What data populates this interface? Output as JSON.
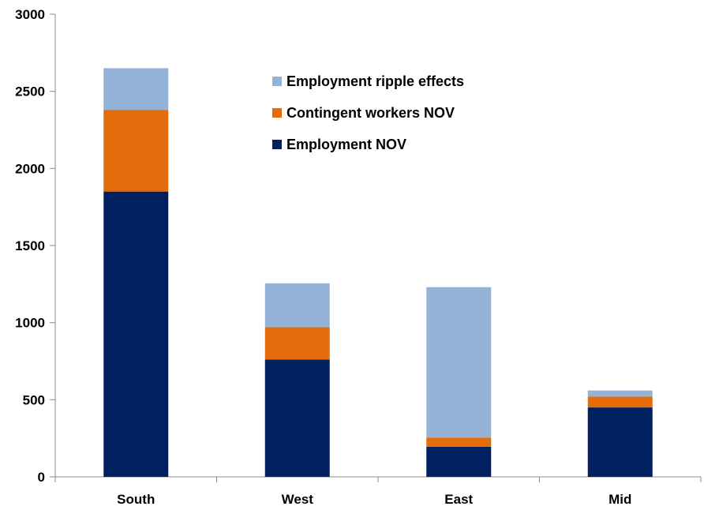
{
  "chart_data": {
    "type": "bar",
    "stacked": true,
    "categories": [
      "South",
      "West",
      "East",
      "Mid"
    ],
    "series": [
      {
        "name": "Employment NOV",
        "values": [
          1850,
          760,
          195,
          450
        ],
        "color": "#002060"
      },
      {
        "name": "Contingent workers NOV",
        "values": [
          530,
          210,
          60,
          70
        ],
        "color": "#E46C0A"
      },
      {
        "name": "Employment ripple effects",
        "values": [
          270,
          285,
          975,
          40
        ],
        "color": "#95B3D7"
      }
    ],
    "legend_order": [
      "Employment ripple effects",
      "Contingent workers NOV",
      "Employment NOV"
    ],
    "legend_position": "top-center",
    "ylim": [
      0,
      3000
    ],
    "yticks": [
      0,
      500,
      1000,
      1500,
      2000,
      2500,
      3000
    ],
    "title": "",
    "xlabel": "",
    "ylabel": "",
    "grid": false
  }
}
